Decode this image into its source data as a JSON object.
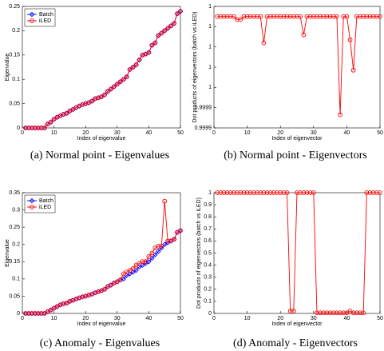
{
  "chart_data": [
    {
      "type": "line",
      "caption": "(a) Normal point - Eigenvalues",
      "xlabel": "Index of eigenvalue",
      "ylabel": "Eigenvalue",
      "xlim": [
        0,
        50
      ],
      "xticks": [
        0,
        10,
        20,
        30,
        40,
        50
      ],
      "ylim": [
        0,
        0.25
      ],
      "yticks": [
        0,
        0.05,
        0.1,
        0.15,
        0.2,
        0.25
      ],
      "legend": "upper left",
      "x": [
        1,
        2,
        3,
        4,
        5,
        6,
        7,
        8,
        9,
        10,
        11,
        12,
        13,
        14,
        15,
        16,
        17,
        18,
        19,
        20,
        21,
        22,
        23,
        24,
        25,
        26,
        27,
        28,
        29,
        30,
        31,
        32,
        33,
        34,
        35,
        36,
        37,
        38,
        39,
        40,
        41,
        42,
        43,
        44,
        45,
        46,
        47,
        48,
        49,
        50
      ],
      "series": [
        {
          "name": "Batch",
          "color": "#0000ff",
          "marker": "diamond",
          "values": [
            0,
            0,
            0,
            0,
            0,
            0,
            0,
            0.008,
            0.012,
            0.018,
            0.022,
            0.025,
            0.028,
            0.03,
            0.035,
            0.038,
            0.042,
            0.045,
            0.048,
            0.05,
            0.052,
            0.055,
            0.06,
            0.062,
            0.064,
            0.068,
            0.075,
            0.08,
            0.085,
            0.09,
            0.095,
            0.1,
            0.105,
            0.12,
            0.125,
            0.13,
            0.14,
            0.15,
            0.152,
            0.155,
            0.17,
            0.175,
            0.19,
            0.195,
            0.2,
            0.205,
            0.21,
            0.215,
            0.235,
            0.24
          ]
        },
        {
          "name": "iLED",
          "color": "#ff0000",
          "marker": "circle",
          "values": [
            0,
            0,
            0,
            0,
            0,
            0,
            0,
            0.008,
            0.012,
            0.018,
            0.022,
            0.025,
            0.028,
            0.03,
            0.035,
            0.038,
            0.042,
            0.045,
            0.048,
            0.05,
            0.052,
            0.055,
            0.06,
            0.062,
            0.064,
            0.068,
            0.075,
            0.08,
            0.085,
            0.09,
            0.095,
            0.1,
            0.105,
            0.12,
            0.125,
            0.13,
            0.14,
            0.15,
            0.152,
            0.155,
            0.17,
            0.175,
            0.19,
            0.195,
            0.2,
            0.205,
            0.21,
            0.215,
            0.235,
            0.24
          ]
        }
      ]
    },
    {
      "type": "line",
      "caption": "(b) Normal point - Eigenvectors",
      "xlabel": "Index of eigenvector",
      "ylabel": "Dot products of eigenvectors (batch vs iLED)",
      "xlim": [
        0,
        50
      ],
      "xticks": [
        0,
        10,
        20,
        30,
        40,
        50
      ],
      "ylim": [
        0.99989,
        1.00001
      ],
      "yticks": [
        {
          "value": 0.99989,
          "label": "0.9999"
        },
        {
          "value": 0.99991,
          "label": "0.9999"
        },
        {
          "value": 0.99993,
          "label": "1"
        },
        {
          "value": 0.99995,
          "label": "1"
        },
        {
          "value": 0.99997,
          "label": "1"
        },
        {
          "value": 0.99999,
          "label": "1"
        },
        {
          "value": 1.00001,
          "label": "1"
        }
      ],
      "x": [
        1,
        2,
        3,
        4,
        5,
        6,
        7,
        8,
        9,
        10,
        11,
        12,
        13,
        14,
        15,
        16,
        17,
        18,
        19,
        20,
        21,
        22,
        23,
        24,
        25,
        26,
        27,
        28,
        29,
        30,
        31,
        32,
        33,
        34,
        35,
        36,
        37,
        38,
        39,
        40,
        41,
        42,
        43,
        44,
        45,
        46,
        47,
        48,
        49,
        50
      ],
      "series": [
        {
          "color": "#ff0000",
          "marker": "circle",
          "values": [
            1,
            1,
            1,
            1,
            1,
            1,
            0.999997,
            0.999997,
            1,
            1,
            1,
            1,
            1,
            1,
            0.999974,
            1,
            1,
            1,
            1,
            1,
            1,
            1,
            1,
            1,
            1,
            1,
            0.999982,
            1,
            1,
            1,
            1,
            1,
            1,
            1,
            1,
            1,
            1,
            0.999903,
            1,
            1,
            0.999977,
            0.999947,
            1,
            1,
            1,
            1,
            1,
            1,
            1,
            1
          ]
        }
      ]
    },
    {
      "type": "line",
      "caption": "(c) Anomaly - Eigenvalues",
      "xlabel": "Index of eigenvalue",
      "ylabel": "Eigenvalue",
      "xlim": [
        0,
        50
      ],
      "xticks": [
        0,
        10,
        20,
        30,
        40,
        50
      ],
      "ylim": [
        0,
        0.35
      ],
      "yticks": [
        0,
        0.05,
        0.1,
        0.15,
        0.2,
        0.25,
        0.3,
        0.35
      ],
      "legend": "upper left",
      "x": [
        1,
        2,
        3,
        4,
        5,
        6,
        7,
        8,
        9,
        10,
        11,
        12,
        13,
        14,
        15,
        16,
        17,
        18,
        19,
        20,
        21,
        22,
        23,
        24,
        25,
        26,
        27,
        28,
        29,
        30,
        31,
        32,
        33,
        34,
        35,
        36,
        37,
        38,
        39,
        40,
        41,
        42,
        43,
        44,
        45,
        46,
        47,
        48,
        49,
        50
      ],
      "series": [
        {
          "name": "Batch",
          "color": "#0000ff",
          "marker": "diamond",
          "values": [
            0,
            0,
            0,
            0,
            0,
            0,
            0,
            0.005,
            0.01,
            0.015,
            0.02,
            0.025,
            0.028,
            0.03,
            0.035,
            0.038,
            0.042,
            0.045,
            0.048,
            0.05,
            0.053,
            0.056,
            0.06,
            0.063,
            0.066,
            0.07,
            0.078,
            0.082,
            0.088,
            0.092,
            0.097,
            0.1,
            0.11,
            0.115,
            0.12,
            0.125,
            0.135,
            0.14,
            0.145,
            0.15,
            0.16,
            0.17,
            0.18,
            0.19,
            0.2,
            0.205,
            0.21,
            0.215,
            0.235,
            0.24
          ]
        },
        {
          "name": "iLED",
          "color": "#ff0000",
          "marker": "circle",
          "values": [
            0,
            0,
            0,
            0,
            0,
            0,
            0,
            0.005,
            0.01,
            0.015,
            0.02,
            0.025,
            0.028,
            0.03,
            0.035,
            0.038,
            0.042,
            0.045,
            0.048,
            0.05,
            0.053,
            0.056,
            0.06,
            0.063,
            0.066,
            0.07,
            0.078,
            0.082,
            0.088,
            0.092,
            0.097,
            0.115,
            0.12,
            0.125,
            0.13,
            0.14,
            0.145,
            0.15,
            0.15,
            0.165,
            0.175,
            0.19,
            0.195,
            0.195,
            0.325,
            0.21,
            0.21,
            0.215,
            0.235,
            0.24
          ]
        }
      ]
    },
    {
      "type": "line",
      "caption": "(d) Anomaly - Eigenvectors",
      "xlabel": "Index of eigenvector",
      "ylabel": "Dot products of eigenvectors (batch vs iLED)",
      "xlim": [
        0,
        50
      ],
      "xticks": [
        0,
        10,
        20,
        30,
        40,
        50
      ],
      "ylim": [
        0,
        1
      ],
      "yticks": [
        0,
        0.1,
        0.2,
        0.3,
        0.4,
        0.5,
        0.6,
        0.7,
        0.8,
        0.9,
        1
      ],
      "x": [
        1,
        2,
        3,
        4,
        5,
        6,
        7,
        8,
        9,
        10,
        11,
        12,
        13,
        14,
        15,
        16,
        17,
        18,
        19,
        20,
        21,
        22,
        23,
        24,
        25,
        26,
        27,
        28,
        29,
        30,
        31,
        32,
        33,
        34,
        35,
        36,
        37,
        38,
        39,
        40,
        41,
        42,
        43,
        44,
        45,
        46,
        47,
        48,
        49,
        50
      ],
      "series": [
        {
          "color": "#ff0000",
          "marker": "circle",
          "values": [
            1,
            1,
            1,
            1,
            1,
            1,
            1,
            1,
            1,
            1,
            1,
            1,
            1,
            1,
            1,
            1,
            1,
            1,
            1,
            1,
            1,
            1,
            0.02,
            0.02,
            1,
            1,
            1,
            1,
            1,
            1,
            0.005,
            0.005,
            0.005,
            0.005,
            0.005,
            0.005,
            0.005,
            0.005,
            0.005,
            0.005,
            0.02,
            0.005,
            0.005,
            0.005,
            0.005,
            1,
            1,
            1,
            1,
            1
          ]
        }
      ]
    }
  ]
}
